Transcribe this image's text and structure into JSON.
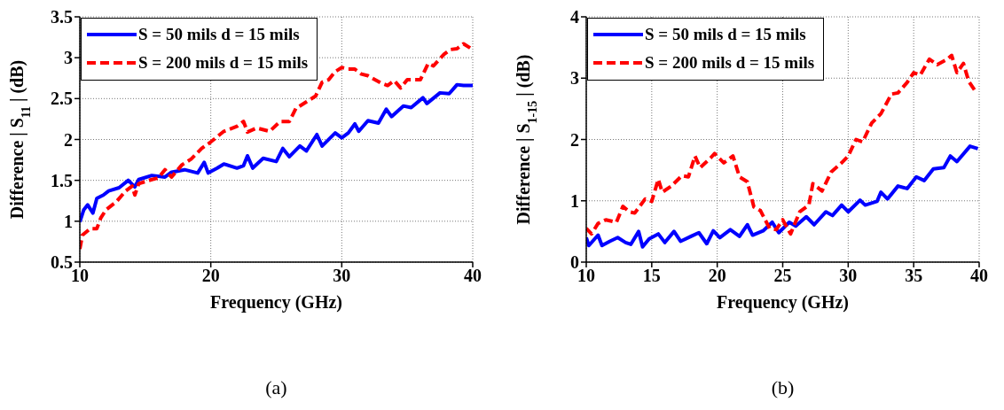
{
  "chart_data": [
    {
      "type": "line",
      "xlabel": "Frequency (GHz)",
      "ylabel": "Difference | S$_{11}$ | (dB)",
      "annotations": [
        "(a)"
      ],
      "xlim": [
        10,
        40
      ],
      "xticks": [
        10,
        20,
        30,
        40
      ],
      "ylim": [
        0.5,
        3.5
      ],
      "yticks": [
        0.5,
        1,
        1.5,
        2,
        2.5,
        3,
        3.5
      ],
      "grid": true,
      "legend": "top left",
      "series": [
        {
          "name": "S = 50 mils d = 15 mils",
          "color": "#0000ff",
          "line_style": "solid",
          "x": [
            10,
            10.3,
            10.6,
            11,
            11.3,
            11.8,
            12.2,
            13,
            13.7,
            14.2,
            14.5,
            15.5,
            16.5,
            17,
            18,
            19,
            19.5,
            19.8,
            20.5,
            21,
            22,
            22.5,
            22.8,
            23.2,
            24,
            25,
            25.5,
            26,
            26.8,
            27.3,
            28.1,
            28.5,
            29.5,
            30,
            30.5,
            31,
            31.3,
            32,
            32.8,
            33.4,
            33.8,
            34.7,
            35.3,
            36.2,
            36.5,
            37.5,
            38.2,
            38.8,
            39.3,
            40
          ],
          "values": [
            0.99,
            1.14,
            1.2,
            1.1,
            1.28,
            1.32,
            1.37,
            1.41,
            1.5,
            1.42,
            1.51,
            1.56,
            1.54,
            1.6,
            1.63,
            1.59,
            1.72,
            1.59,
            1.65,
            1.7,
            1.65,
            1.68,
            1.8,
            1.65,
            1.77,
            1.73,
            1.89,
            1.79,
            1.92,
            1.86,
            2.06,
            1.92,
            2.08,
            2.02,
            2.08,
            2.19,
            2.1,
            2.23,
            2.2,
            2.37,
            2.28,
            2.41,
            2.39,
            2.51,
            2.44,
            2.57,
            2.56,
            2.67,
            2.66,
            2.66
          ]
        },
        {
          "name": "S = 200 mils d = 15 mils",
          "color": "#ff0000",
          "line_style": "dashed",
          "x": [
            10,
            10.2,
            10.8,
            11.3,
            11.6,
            12,
            12.8,
            13.5,
            14,
            14.2,
            14.5,
            15.5,
            16,
            16.5,
            17,
            17.8,
            18.5,
            19.3,
            20,
            21,
            22,
            22.5,
            22.8,
            23.5,
            24.5,
            25.3,
            26,
            26.5,
            27.3,
            28,
            28.5,
            29,
            29.5,
            30,
            30.5,
            31,
            31.5,
            32,
            33,
            33.5,
            34,
            34.5,
            35,
            36,
            36.6,
            37,
            37.8,
            38.3,
            38.8,
            39.3,
            40
          ],
          "values": [
            0.66,
            0.83,
            0.91,
            0.91,
            1.04,
            1.14,
            1.24,
            1.37,
            1.43,
            1.32,
            1.46,
            1.51,
            1.53,
            1.63,
            1.54,
            1.69,
            1.76,
            1.89,
            1.97,
            2.1,
            2.16,
            2.22,
            2.09,
            2.14,
            2.1,
            2.22,
            2.22,
            2.38,
            2.46,
            2.53,
            2.7,
            2.73,
            2.83,
            2.88,
            2.86,
            2.86,
            2.8,
            2.78,
            2.69,
            2.66,
            2.72,
            2.63,
            2.73,
            2.73,
            2.93,
            2.9,
            3.04,
            3.1,
            3.11,
            3.17,
            3.1
          ]
        }
      ]
    },
    {
      "type": "line",
      "xlabel": "Frequency (GHz)",
      "ylabel": "Difference | S$_{1-15}$ | (dB)",
      "annotations": [
        "(b)"
      ],
      "xlim": [
        10,
        40
      ],
      "xticks": [
        10,
        15,
        20,
        25,
        30,
        35,
        40
      ],
      "ylim": [
        0,
        4
      ],
      "yticks": [
        0,
        1,
        2,
        3,
        4
      ],
      "grid": true,
      "legend": "top left",
      "series": [
        {
          "name": "S = 50 mils d = 15 mils",
          "color": "#0000ff",
          "line_style": "solid",
          "x": [
            10,
            10.2,
            10.9,
            11.2,
            11.8,
            12.4,
            13,
            13.4,
            14,
            14.3,
            14.8,
            15.5,
            16,
            16.7,
            17.2,
            18,
            18.6,
            19.2,
            19.7,
            20.2,
            21,
            21.7,
            22.3,
            22.7,
            23.5,
            24.2,
            24.7,
            25.5,
            26,
            26.8,
            27.4,
            28.3,
            28.8,
            29.5,
            30,
            30.9,
            31.3,
            32.2,
            32.5,
            33,
            33.8,
            34.5,
            35.2,
            35.8,
            36.5,
            37.3,
            37.8,
            38.3,
            39.3,
            39.9
          ],
          "values": [
            0.4,
            0.27,
            0.44,
            0.27,
            0.34,
            0.4,
            0.32,
            0.29,
            0.5,
            0.25,
            0.38,
            0.46,
            0.32,
            0.5,
            0.34,
            0.42,
            0.48,
            0.3,
            0.51,
            0.4,
            0.53,
            0.42,
            0.61,
            0.44,
            0.51,
            0.65,
            0.48,
            0.65,
            0.59,
            0.74,
            0.61,
            0.82,
            0.76,
            0.93,
            0.82,
            1.01,
            0.93,
            0.99,
            1.14,
            1.03,
            1.24,
            1.2,
            1.39,
            1.33,
            1.52,
            1.54,
            1.73,
            1.64,
            1.89,
            1.85
          ]
        },
        {
          "name": "S = 200 mils d = 15 mils",
          "color": "#ff0000",
          "line_style": "dashed",
          "x": [
            10,
            10.4,
            10.9,
            11.5,
            12.3,
            12.8,
            13.3,
            13.7,
            14.5,
            15,
            15.5,
            15.8,
            16.5,
            17.3,
            17.8,
            18.3,
            18.7,
            19.5,
            19.8,
            20.5,
            21.2,
            21.7,
            22.3,
            22.8,
            23.3,
            24,
            24.5,
            25,
            25.6,
            26.3,
            27,
            27.3,
            28,
            28.7,
            29.5,
            30,
            30.6,
            31.1,
            31.8,
            32.5,
            33.3,
            33.8,
            34.5,
            35,
            35.5,
            36.2,
            36.8,
            37.5,
            37.9,
            38.3,
            38.8,
            39.2,
            39.8
          ],
          "values": [
            0.55,
            0.46,
            0.63,
            0.69,
            0.65,
            0.91,
            0.82,
            0.8,
            1.03,
            0.99,
            1.35,
            1.14,
            1.24,
            1.41,
            1.39,
            1.73,
            1.54,
            1.7,
            1.77,
            1.62,
            1.73,
            1.39,
            1.31,
            0.9,
            0.84,
            0.55,
            0.53,
            0.69,
            0.46,
            0.82,
            0.93,
            1.28,
            1.16,
            1.47,
            1.62,
            1.73,
            2.0,
            1.96,
            2.27,
            2.42,
            2.74,
            2.76,
            2.93,
            3.09,
            3.05,
            3.31,
            3.22,
            3.3,
            3.37,
            3.09,
            3.24,
            2.95,
            2.76
          ]
        }
      ]
    }
  ]
}
